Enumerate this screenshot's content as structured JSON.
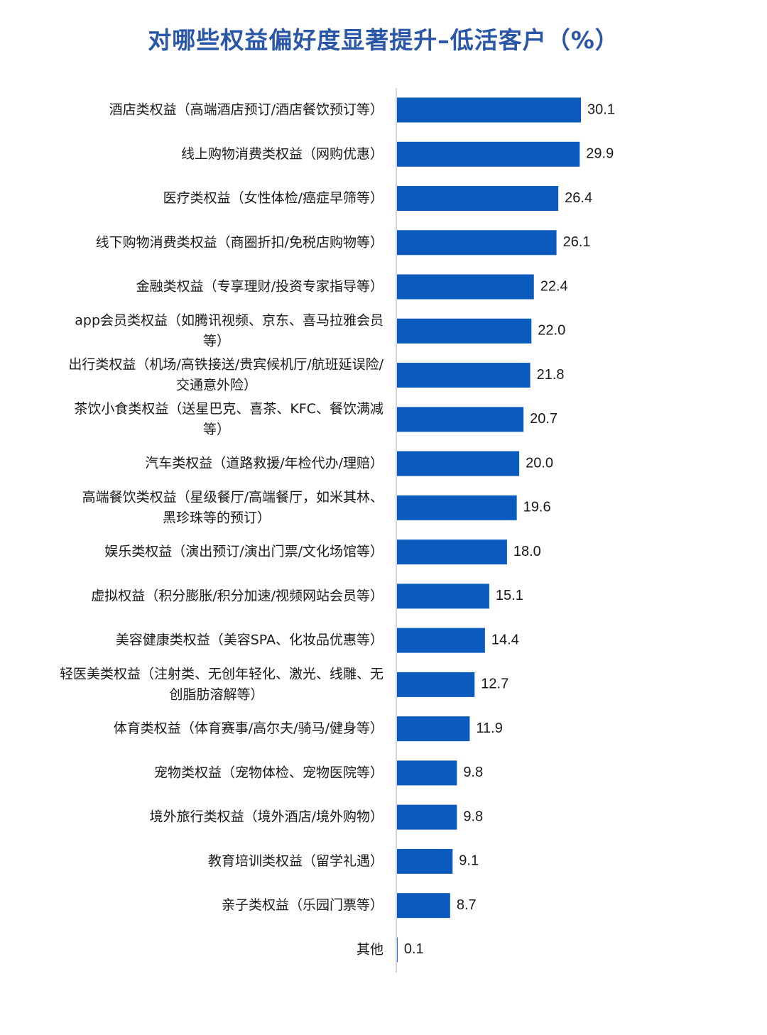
{
  "title": "对哪些权益偏好度显著提升–低活客户（%）",
  "colors": {
    "bar": "#0a5bbd",
    "axis": "#c8c8c8",
    "title": "#2a56a8"
  },
  "chart_data": {
    "type": "bar",
    "orientation": "horizontal",
    "title": "对哪些权益偏好度显著提升–低活客户（%）",
    "xlabel": "",
    "ylabel": "",
    "xlim": [
      0,
      40
    ],
    "grid": false,
    "legend": "none",
    "categories": [
      [
        "酒店类权益（高端酒店预订/酒店餐饮预订等）"
      ],
      [
        "线上购物消费类权益（网购优惠）"
      ],
      [
        "医疗类权益（女性体检/癌症早筛等）"
      ],
      [
        "线下购物消费类权益（商圈折扣/免税店购物等）"
      ],
      [
        "金融类权益（专享理财/投资专家指导等）"
      ],
      [
        "app会员类权益（如腾讯视频、京东、喜马拉雅会员",
        "等）"
      ],
      [
        "出行类权益（机场/高铁接送/贵宾候机厅/航班延误险/",
        "交通意外险）"
      ],
      [
        "茶饮小食类权益（送星巴克、喜茶、KFC、餐饮满减",
        "等）"
      ],
      [
        "汽车类权益（道路救援/年检代办/理赔）"
      ],
      [
        "高端餐饮类权益（星级餐厅/高端餐厅，如米其林、",
        "黑珍珠等的预订）"
      ],
      [
        "娱乐类权益（演出预订/演出门票/文化场馆等）"
      ],
      [
        "虚拟权益（积分膨胀/积分加速/视频网站会员等）"
      ],
      [
        "美容健康类权益（美容SPA、化妆品优惠等）"
      ],
      [
        "轻医美类权益（注射类、无创年轻化、激光、线雕、无",
        "创脂肪溶解等）"
      ],
      [
        "体育类权益（体育赛事/高尔夫/骑马/健身等）"
      ],
      [
        "宠物类权益（宠物体检、宠物医院等）"
      ],
      [
        "境外旅行类权益（境外酒店/境外购物）"
      ],
      [
        "教育培训类权益（留学礼遇）"
      ],
      [
        "亲子类权益（乐园门票等）"
      ],
      [
        "其他"
      ]
    ],
    "values": [
      30.1,
      29.9,
      26.4,
      26.1,
      22.4,
      22.0,
      21.8,
      20.7,
      20.0,
      19.6,
      18.0,
      15.1,
      14.4,
      12.7,
      11.9,
      9.8,
      9.8,
      9.1,
      8.7,
      0.1
    ],
    "value_labels": [
      "30.1",
      "29.9",
      "26.4",
      "26.1",
      "22.4",
      "22.0",
      "21.8",
      "20.7",
      "20.0",
      "19.6",
      "18.0",
      "15.1",
      "14.4",
      "12.7",
      "11.9",
      "9.8",
      "9.8",
      "9.1",
      "8.7",
      "0.1"
    ]
  }
}
